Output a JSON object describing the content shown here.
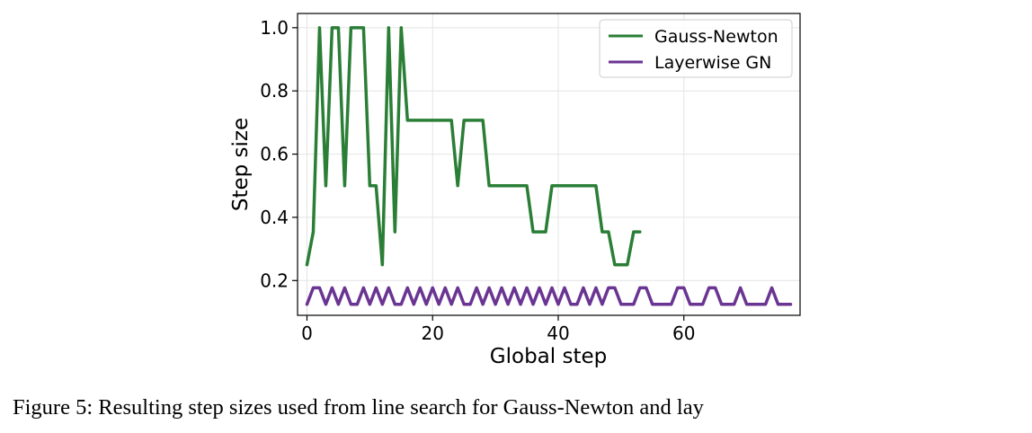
{
  "chart_data": {
    "type": "line",
    "xlabel": "Global step",
    "ylabel": "Step size",
    "xlim": [
      -1.5,
      78.5
    ],
    "ylim": [
      0.09,
      1.045
    ],
    "xticks": [
      0,
      20,
      40,
      60
    ],
    "yticks": [
      0.2,
      0.4,
      0.6,
      0.8,
      1.0
    ],
    "xtick_labels": [
      "0",
      "20",
      "40",
      "60"
    ],
    "ytick_labels": [
      "0.2",
      "0.4",
      "0.6",
      "0.8",
      "1.0"
    ],
    "grid": true,
    "legend_position": "upper right",
    "series": [
      {
        "name": "Gauss-Newton",
        "color": "#2a7e36",
        "x": [
          0,
          1,
          2,
          3,
          4,
          5,
          6,
          7,
          8,
          9,
          10,
          11,
          12,
          13,
          14,
          15,
          16,
          17,
          18,
          19,
          20,
          21,
          22,
          23,
          24,
          25,
          26,
          27,
          28,
          29,
          30,
          31,
          32,
          33,
          34,
          35,
          36,
          37,
          38,
          39,
          40,
          41,
          42,
          43,
          44,
          45,
          46,
          47,
          48,
          49,
          50,
          51,
          52,
          53
        ],
        "y": [
          0.25,
          0.354,
          1.0,
          0.5,
          1.0,
          1.0,
          0.5,
          1.0,
          1.0,
          1.0,
          0.5,
          0.5,
          0.25,
          1.0,
          0.354,
          1.0,
          0.707,
          0.707,
          0.707,
          0.707,
          0.707,
          0.707,
          0.707,
          0.707,
          0.5,
          0.707,
          0.707,
          0.707,
          0.707,
          0.5,
          0.5,
          0.5,
          0.5,
          0.5,
          0.5,
          0.5,
          0.354,
          0.354,
          0.354,
          0.5,
          0.5,
          0.5,
          0.5,
          0.5,
          0.5,
          0.5,
          0.5,
          0.354,
          0.354,
          0.25,
          0.25,
          0.25,
          0.354,
          0.354
        ]
      },
      {
        "name": "Layerwise GN",
        "color": "#6a3592",
        "x": [
          0,
          1,
          2,
          3,
          4,
          5,
          6,
          7,
          8,
          9,
          10,
          11,
          12,
          13,
          14,
          15,
          16,
          17,
          18,
          19,
          20,
          21,
          22,
          23,
          24,
          25,
          26,
          27,
          28,
          29,
          30,
          31,
          32,
          33,
          34,
          35,
          36,
          37,
          38,
          39,
          40,
          41,
          42,
          43,
          44,
          45,
          46,
          47,
          48,
          49,
          50,
          51,
          52,
          53,
          54,
          55,
          56,
          57,
          58,
          59,
          60,
          61,
          62,
          63,
          64,
          65,
          66,
          67,
          68,
          69,
          70,
          71,
          72,
          73,
          74,
          75,
          76,
          77
        ],
        "y": [
          0.125,
          0.177,
          0.177,
          0.125,
          0.177,
          0.125,
          0.177,
          0.125,
          0.125,
          0.177,
          0.125,
          0.177,
          0.125,
          0.177,
          0.125,
          0.125,
          0.177,
          0.125,
          0.177,
          0.125,
          0.177,
          0.125,
          0.177,
          0.125,
          0.177,
          0.125,
          0.125,
          0.177,
          0.125,
          0.177,
          0.125,
          0.177,
          0.125,
          0.177,
          0.125,
          0.177,
          0.125,
          0.177,
          0.125,
          0.177,
          0.125,
          0.177,
          0.125,
          0.125,
          0.177,
          0.125,
          0.177,
          0.125,
          0.177,
          0.177,
          0.125,
          0.125,
          0.125,
          0.177,
          0.177,
          0.125,
          0.125,
          0.125,
          0.125,
          0.177,
          0.177,
          0.125,
          0.125,
          0.125,
          0.177,
          0.177,
          0.125,
          0.125,
          0.125,
          0.177,
          0.125,
          0.125,
          0.125,
          0.125,
          0.177,
          0.125,
          0.125,
          0.125
        ]
      }
    ]
  },
  "caption": {
    "text": "Figure 5: Resulting step sizes used from line search for Gauss-Newton and lay"
  }
}
